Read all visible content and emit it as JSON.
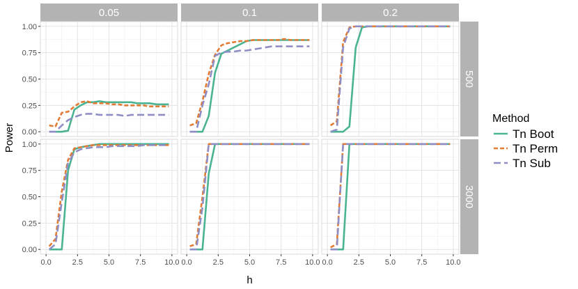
{
  "chart_data": {
    "type": "line",
    "xlabel": "h",
    "ylabel": "Power",
    "xlim": [
      0,
      10
    ],
    "ylim": [
      0,
      1
    ],
    "x_ticks": [
      "0.0",
      "2.5",
      "5.0",
      "7.5",
      "10.0"
    ],
    "y_ticks": [
      "0.00",
      "0.25",
      "0.50",
      "0.75",
      "1.00"
    ],
    "col_facets": [
      "0.05",
      "0.1",
      "0.2"
    ],
    "row_facets": [
      "500",
      "3000"
    ],
    "grid": true,
    "legend": {
      "title": "Method",
      "placement": "right",
      "entries": [
        "Tn Boot",
        "Tn Perm",
        "Tn Sub"
      ]
    },
    "series_styles": [
      {
        "name": "Tn Boot",
        "color": "#4ab392",
        "dash": "solid"
      },
      {
        "name": "Tn Perm",
        "color": "#e27b34",
        "dash": "dotted"
      },
      {
        "name": "Tn Sub",
        "color": "#8f8ec4",
        "dash": "dashed"
      }
    ],
    "x": [
      0.25,
      0.75,
      1.25,
      1.75,
      2.25,
      2.75,
      3.25,
      3.75,
      4.25,
      4.75,
      5.25,
      5.75,
      6.25,
      6.75,
      7.25,
      7.75,
      8.25,
      8.75,
      9.25,
      9.75
    ],
    "panels": [
      {
        "col": "0.05",
        "row": "500",
        "series": [
          {
            "name": "Tn Boot",
            "values": [
              0,
              0,
              0,
              0.01,
              0.21,
              0.25,
              0.28,
              0.28,
              0.29,
              0.28,
              0.28,
              0.28,
              0.28,
              0.28,
              0.27,
              0.27,
              0.27,
              0.26,
              0.26,
              0.26
            ]
          },
          {
            "name": "Tn Perm",
            "values": [
              0.06,
              0.05,
              0.18,
              0.19,
              0.24,
              0.28,
              0.29,
              0.27,
              0.27,
              0.27,
              0.26,
              0.26,
              0.25,
              0.25,
              0.25,
              0.25,
              0.24,
              0.24,
              0.24,
              0.24
            ]
          },
          {
            "name": "Tn Sub",
            "values": [
              0,
              0,
              0.06,
              0.11,
              0.14,
              0.16,
              0.17,
              0.17,
              0.16,
              0.16,
              0.16,
              0.16,
              0.15,
              0.16,
              0.16,
              0.16,
              0.16,
              0.16,
              0.16,
              0.16
            ]
          }
        ]
      },
      {
        "col": "0.1",
        "row": "500",
        "series": [
          {
            "name": "Tn Boot",
            "values": [
              0,
              0,
              0,
              0.15,
              0.56,
              0.74,
              0.77,
              0.8,
              0.83,
              0.86,
              0.87,
              0.87,
              0.87,
              0.87,
              0.87,
              0.87,
              0.87,
              0.87,
              0.87,
              0.87
            ]
          },
          {
            "name": "Tn Perm",
            "values": [
              0.06,
              0.08,
              0.29,
              0.55,
              0.73,
              0.82,
              0.84,
              0.85,
              0.86,
              0.86,
              0.87,
              0.87,
              0.87,
              0.87,
              0.87,
              0.88,
              0.87,
              0.87,
              0.87,
              0.87
            ]
          },
          {
            "name": "Tn Sub",
            "values": [
              0,
              0,
              0.25,
              0.45,
              0.72,
              0.75,
              0.76,
              0.76,
              0.77,
              0.77,
              0.78,
              0.79,
              0.8,
              0.81,
              0.81,
              0.81,
              0.81,
              0.81,
              0.81,
              0.81
            ]
          }
        ]
      },
      {
        "col": "0.2",
        "row": "500",
        "series": [
          {
            "name": "Tn Boot",
            "values": [
              0,
              0,
              0,
              0.05,
              0.8,
              0.99,
              1,
              1,
              1,
              1,
              1,
              1,
              1,
              1,
              1,
              1,
              1,
              1,
              1,
              1
            ]
          },
          {
            "name": "Tn Perm",
            "values": [
              0.06,
              0.1,
              0.85,
              0.99,
              1,
              1,
              1,
              1,
              1,
              1,
              1,
              1,
              1,
              1,
              1,
              1,
              1,
              1,
              1,
              1
            ]
          },
          {
            "name": "Tn Sub",
            "values": [
              0,
              0.02,
              0.8,
              0.98,
              1,
              1,
              1,
              1,
              1,
              1,
              1,
              1,
              1,
              1,
              1,
              1,
              1,
              1,
              1,
              1
            ]
          }
        ]
      },
      {
        "col": "0.05",
        "row": "3000",
        "series": [
          {
            "name": "Tn Boot",
            "values": [
              0,
              0,
              0,
              0.75,
              0.95,
              0.97,
              0.98,
              0.99,
              1,
              1,
              1,
              1,
              1,
              1,
              1,
              1,
              1,
              1,
              1,
              1
            ]
          },
          {
            "name": "Tn Perm",
            "values": [
              0.03,
              0.1,
              0.55,
              0.85,
              0.96,
              0.97,
              0.98,
              0.99,
              0.99,
              0.99,
              0.99,
              0.99,
              0.99,
              0.99,
              0.99,
              0.99,
              0.99,
              0.99,
              0.99,
              0.99
            ]
          },
          {
            "name": "Tn Sub",
            "values": [
              0,
              0.05,
              0.45,
              0.82,
              0.92,
              0.95,
              0.96,
              0.97,
              0.97,
              0.97,
              0.98,
              0.98,
              0.98,
              0.98,
              0.98,
              0.99,
              0.99,
              0.99,
              0.99,
              0.99
            ]
          }
        ]
      },
      {
        "col": "0.1",
        "row": "3000",
        "series": [
          {
            "name": "Tn Boot",
            "values": [
              0,
              0,
              0,
              0.72,
              1,
              1,
              1,
              1,
              1,
              1,
              1,
              1,
              1,
              1,
              1,
              1,
              1,
              1,
              1,
              1
            ]
          },
          {
            "name": "Tn Perm",
            "values": [
              0.03,
              0.05,
              0.5,
              1,
              1,
              1,
              1,
              1,
              1,
              1,
              1,
              1,
              1,
              1,
              1,
              1,
              1,
              1,
              1,
              1
            ]
          },
          {
            "name": "Tn Sub",
            "values": [
              0,
              0,
              0.4,
              1,
              1,
              1,
              1,
              1,
              1,
              1,
              1,
              1,
              1,
              1,
              1,
              1,
              1,
              1,
              1,
              1
            ]
          }
        ]
      },
      {
        "col": "0.2",
        "row": "3000",
        "series": [
          {
            "name": "Tn Boot",
            "values": [
              0,
              0,
              0,
              1,
              1,
              1,
              1,
              1,
              1,
              1,
              1,
              1,
              1,
              1,
              1,
              1,
              1,
              1,
              1,
              1
            ]
          },
          {
            "name": "Tn Perm",
            "values": [
              0.02,
              0.05,
              1,
              1,
              1,
              1,
              1,
              1,
              1,
              1,
              1,
              1,
              1,
              1,
              1,
              1,
              1,
              1,
              1,
              1
            ]
          },
          {
            "name": "Tn Sub",
            "values": [
              0,
              0,
              1,
              1,
              1,
              1,
              1,
              1,
              1,
              1,
              1,
              1,
              1,
              1,
              1,
              1,
              1,
              1,
              1,
              1
            ]
          }
        ]
      }
    ]
  }
}
